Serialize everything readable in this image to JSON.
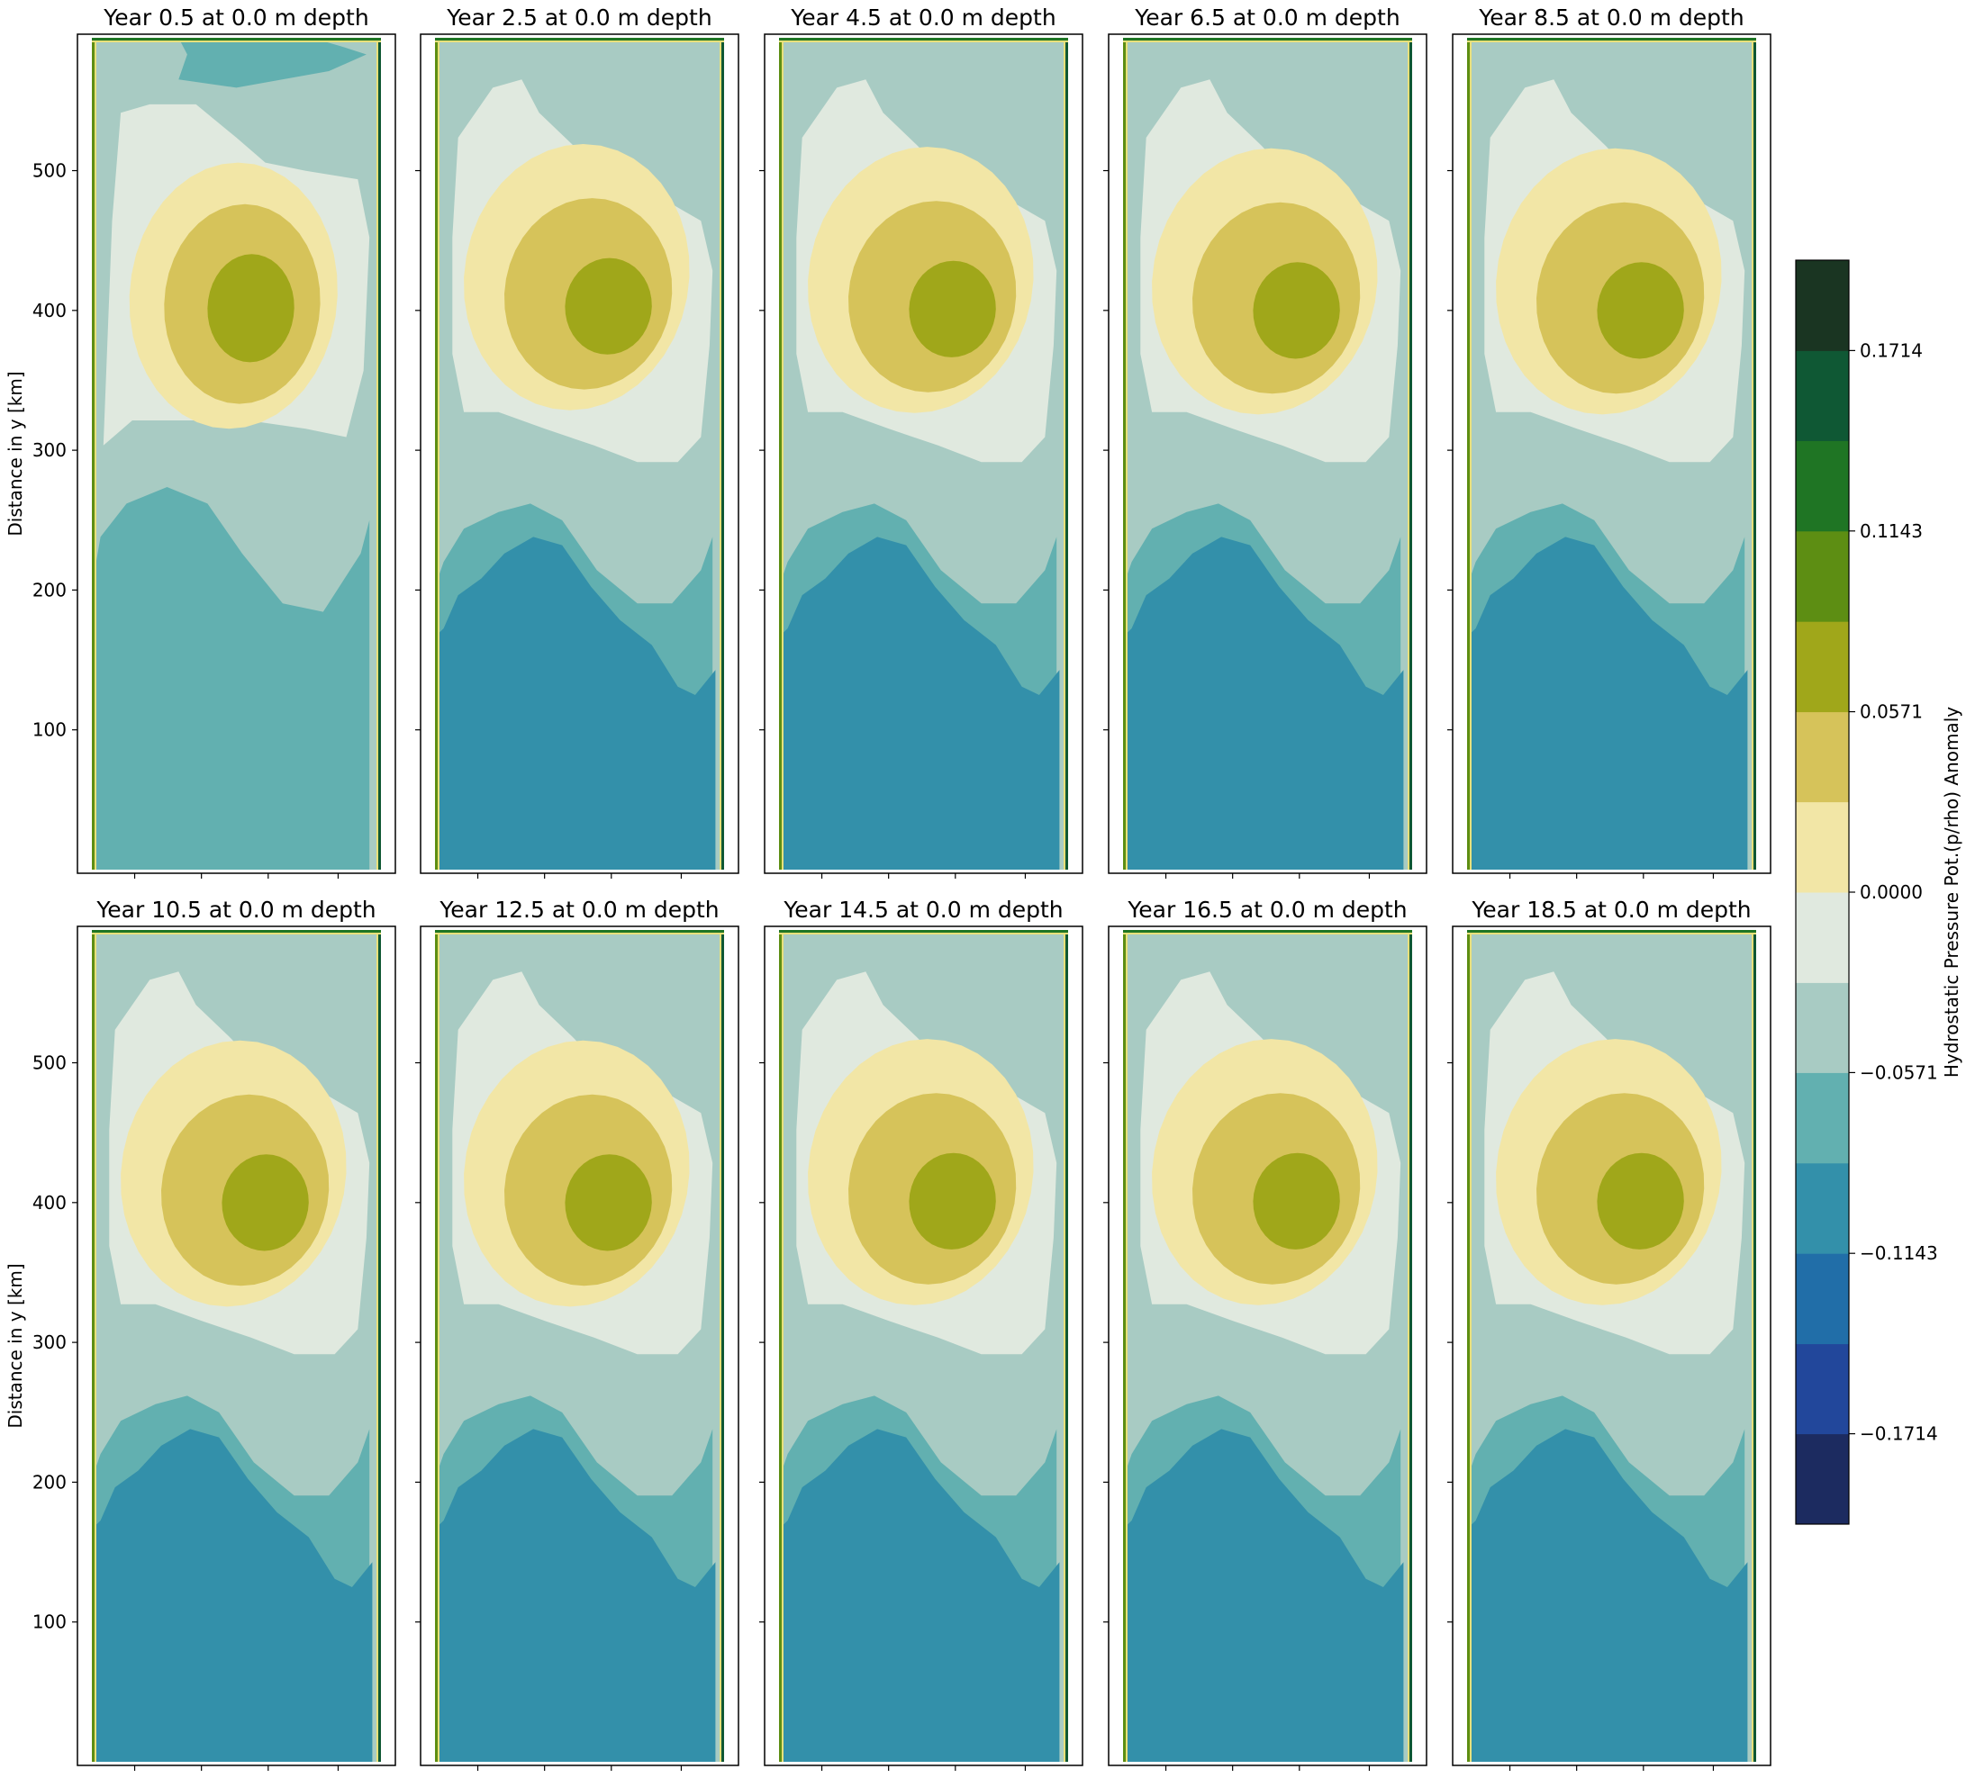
{
  "chart_data": {
    "type": "filled-contour",
    "layout": "2x5 small multiples",
    "panels": [
      {
        "title": "Year 0.5 at 0.0 m depth",
        "variant": "early"
      },
      {
        "title": "Year 2.5 at 0.0 m depth",
        "variant": "mature",
        "center_y": 400
      },
      {
        "title": "Year 4.5 at 0.0 m depth",
        "variant": "mature",
        "center_y": 398
      },
      {
        "title": "Year 6.5 at 0.0 m depth",
        "variant": "mature",
        "center_y": 397
      },
      {
        "title": "Year 8.5 at 0.0 m depth",
        "variant": "mature",
        "center_y": 397
      },
      {
        "title": "Year 10.5 at 0.0 m depth",
        "variant": "mature",
        "center_y": 397
      },
      {
        "title": "Year 12.5 at 0.0 m depth",
        "variant": "mature",
        "center_y": 397
      },
      {
        "title": "Year 14.5 at 0.0 m depth",
        "variant": "mature",
        "center_y": 398
      },
      {
        "title": "Year 16.5 at 0.0 m depth",
        "variant": "mature",
        "center_y": 398
      },
      {
        "title": "Year 18.5 at 0.0 m depth",
        "variant": "mature",
        "center_y": 398
      }
    ],
    "ylabel": "Distance in y [km]",
    "ylim": [
      0,
      595
    ],
    "yticks": [
      "100",
      "200",
      "300",
      "400",
      "500"
    ],
    "x_tick_labels_shown": false,
    "colorbar": {
      "label": "Hydrostatic Pressure Pot.(p/rho) Anomaly",
      "levels": [
        -0.2,
        -0.1714,
        -0.1429,
        -0.1143,
        -0.0857,
        -0.0571,
        -0.0286,
        0.0,
        0.0286,
        0.0571,
        0.0857,
        0.1143,
        0.1429,
        0.1714,
        0.2
      ],
      "tick_values": [
        -0.1714,
        -0.1143,
        -0.0571,
        0.0,
        0.0571,
        0.1143,
        0.1714
      ],
      "tick_labels": [
        "−0.1714",
        "−0.1143",
        "−0.0571",
        "0.0000",
        "0.0571",
        "0.1143",
        "0.1714"
      ],
      "colors": [
        "#1c2b60",
        "#22479b",
        "#216ea8",
        "#3390aa",
        "#62b0b0",
        "#a8cbc3",
        "#e0e9df",
        "#f2e6a6",
        "#d6c35a",
        "#a0a71a",
        "#5d8e13",
        "#1f7524",
        "#0f5834",
        "#1a3522"
      ]
    }
  }
}
